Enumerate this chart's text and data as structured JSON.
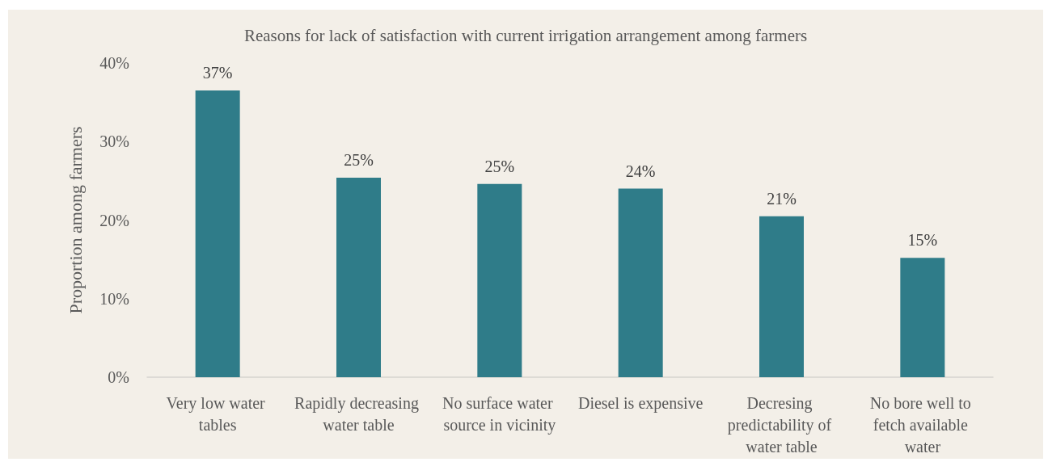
{
  "chart_data": {
    "type": "bar",
    "title": "Reasons for lack of satisfaction with current irrigation arrangement among farmers",
    "ylabel": "Proportion among farmers",
    "categories": [
      "Very low water tables",
      "Rapidly decreasing water table",
      "No surface water source in vicinity",
      "Diesel is expensive",
      "Decresing predictability of water table",
      "No bore well to fetch available water"
    ],
    "values": [
      36.5,
      25.4,
      24.6,
      24.0,
      20.5,
      15.2
    ],
    "value_labels": [
      "37%",
      "25%",
      "25%",
      "24%",
      "21%",
      "15%"
    ],
    "color": "#2f7c89",
    "ylim": [
      0,
      40
    ],
    "yticks": [
      {
        "value": 0,
        "label": "0%"
      },
      {
        "value": 10,
        "label": "10%"
      },
      {
        "value": 20,
        "label": "20%"
      },
      {
        "value": 30,
        "label": "30%"
      },
      {
        "value": 40,
        "label": "40%"
      }
    ]
  }
}
